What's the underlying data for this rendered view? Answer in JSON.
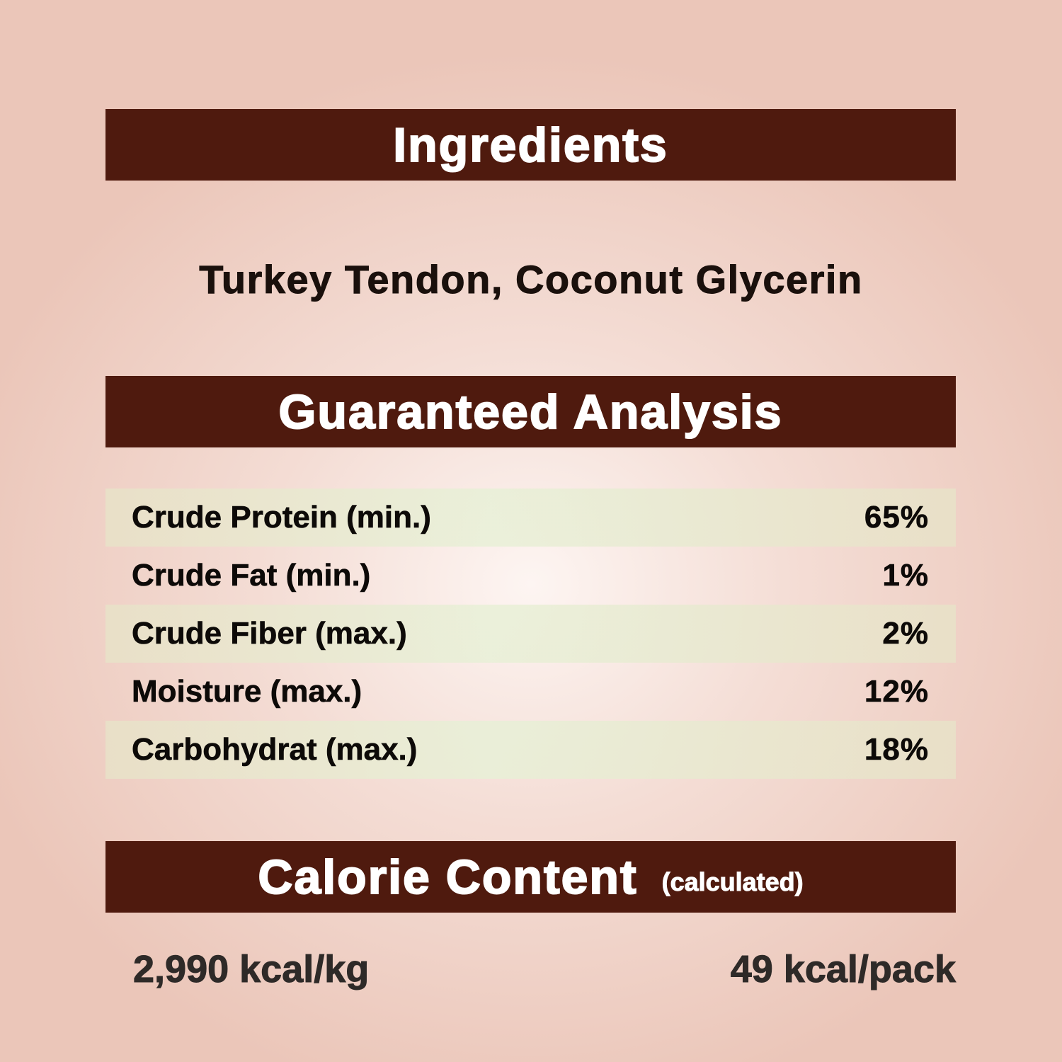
{
  "ingredients": {
    "heading": "Ingredients",
    "text": "Turkey Tendon, Coconut Glycerin"
  },
  "analysis": {
    "heading": "Guaranteed Analysis",
    "rows": [
      {
        "label": "Crude Protein (min.)",
        "value": "65%"
      },
      {
        "label": "Crude Fat (min.)",
        "value": "1%"
      },
      {
        "label": "Crude Fiber (max.)",
        "value": "2%"
      },
      {
        "label": "Moisture (max.)",
        "value": "12%"
      },
      {
        "label": "Carbohydrat (max.)",
        "value": "18%"
      }
    ]
  },
  "calories": {
    "heading": "Calorie Content",
    "subheading": "(calculated)",
    "per_kg": "2,990 kcal/kg",
    "per_pack": "49 kcal/pack"
  },
  "colors": {
    "banner": "#4f1a0e",
    "background": "#f4ddd5",
    "row_alt": "#e8e6d0"
  }
}
